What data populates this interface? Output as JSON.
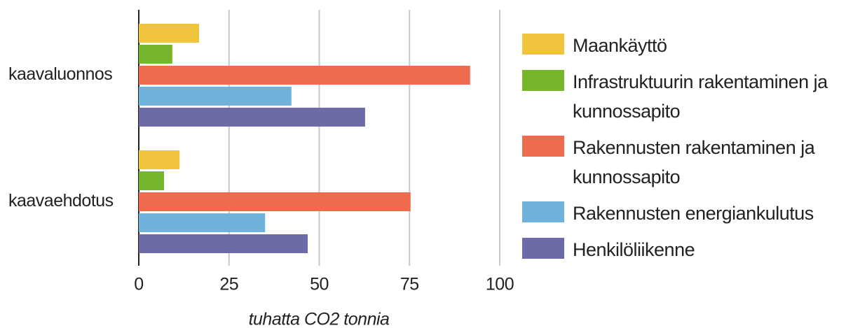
{
  "chart_data": {
    "type": "bar",
    "orientation": "horizontal",
    "categories": [
      "kaavaluonnos",
      "kaavaehdotus"
    ],
    "series": [
      {
        "name": "Maankäyttö",
        "color": "#f0c43c",
        "values": [
          16.7,
          11.3
        ]
      },
      {
        "name": "Infrastruktuurin rakentaminen ja kunnossapito",
        "color": "#77b52b",
        "values": [
          9.3,
          7.0
        ]
      },
      {
        "name": "Rakennusten rakentaminen ja kunnossapito",
        "color": "#ee6c4d",
        "values": [
          91.8,
          75.3
        ]
      },
      {
        "name": "Rakennusten energiankulutus",
        "color": "#6fb3dc",
        "values": [
          42.3,
          35.0
        ]
      },
      {
        "name": "Henkilöliikenne",
        "color": "#6d6aa8",
        "values": [
          62.7,
          46.8
        ]
      }
    ],
    "x_label": "tuhatta CO2 tonnia",
    "xlim": [
      0,
      100
    ],
    "xticks": [
      0,
      25,
      50,
      75,
      100
    ],
    "grid": true,
    "legend": "right"
  }
}
